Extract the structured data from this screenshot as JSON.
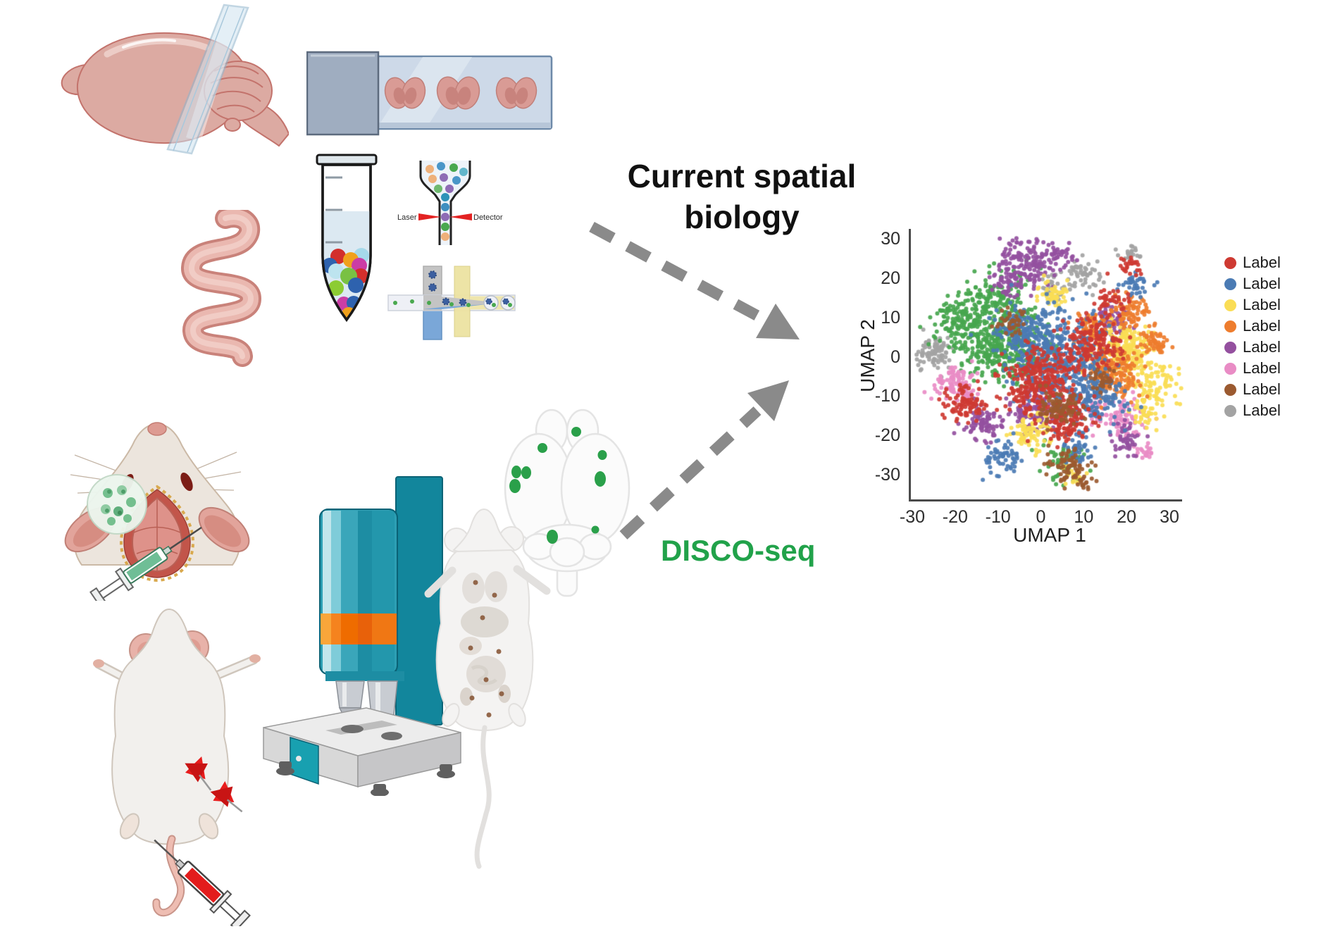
{
  "heading": {
    "line1": "Current spatial",
    "line2": "biology"
  },
  "disco_label": "DISCO-seq",
  "cytometer": {
    "laser": "Laser",
    "detector": "Detector"
  },
  "chart_data": {
    "type": "scatter",
    "title": "",
    "xlabel": "UMAP 1",
    "ylabel": "UMAP 2",
    "xlim": [
      -33,
      33
    ],
    "ylim": [
      -37,
      32
    ],
    "xticks": [
      -30,
      -20,
      -10,
      0,
      10,
      20,
      30
    ],
    "yticks": [
      30,
      20,
      10,
      0,
      -10,
      -20,
      -30
    ],
    "grid": false,
    "legend_position": "right",
    "point_radius_px": 3,
    "palette": {
      "red": "#ce3a32",
      "blue": "#4b7bb4",
      "yellow": "#fadd55",
      "orange": "#ee7d2e",
      "purple": "#94509f",
      "pink": "#e98cc5",
      "brown": "#9b5a30",
      "gray": "#a3a3a3",
      "green": "#47a64e"
    },
    "legend": [
      {
        "label": "Label",
        "color": "#ce3a32"
      },
      {
        "label": "Label",
        "color": "#4b7bb4"
      },
      {
        "label": "Label",
        "color": "#fadd55"
      },
      {
        "label": "Label",
        "color": "#ee7d2e"
      },
      {
        "label": "Label",
        "color": "#94509f"
      },
      {
        "label": "Label",
        "color": "#e98cc5"
      },
      {
        "label": "Label",
        "color": "#9b5a30"
      },
      {
        "label": "Label",
        "color": "#a3a3a3"
      }
    ],
    "clusters": [
      {
        "c": "gray",
        "x": -25,
        "y": 1,
        "sd": 2.2,
        "n": 90
      },
      {
        "c": "gray",
        "x": 10,
        "y": 21,
        "sd": 2.0,
        "n": 55
      },
      {
        "c": "gray",
        "x": 3,
        "y": 18,
        "sd": 1.3,
        "n": 25
      },
      {
        "c": "gray",
        "x": 21,
        "y": 26,
        "sd": 1.3,
        "n": 20
      },
      {
        "c": "green",
        "x": -14,
        "y": 6,
        "sd": 5.0,
        "n": 240
      },
      {
        "c": "green",
        "x": -9,
        "y": 15,
        "sd": 3.5,
        "n": 130
      },
      {
        "c": "green",
        "x": -20,
        "y": 11,
        "sd": 2.5,
        "n": 60
      },
      {
        "c": "green",
        "x": -4,
        "y": 1,
        "sd": 4.0,
        "n": 170
      },
      {
        "c": "green",
        "x": 5,
        "y": -27,
        "sd": 2.5,
        "n": 60
      },
      {
        "c": "green",
        "x": -11,
        "y": 0,
        "sd": 2.5,
        "n": 80
      },
      {
        "c": "pink",
        "x": -20,
        "y": -7,
        "sd": 2.4,
        "n": 100
      },
      {
        "c": "pink",
        "x": 19,
        "y": -16,
        "sd": 2.6,
        "n": 80
      },
      {
        "c": "pink",
        "x": 13,
        "y": -13,
        "sd": 1.3,
        "n": 30
      },
      {
        "c": "pink",
        "x": 24,
        "y": -24,
        "sd": 1.3,
        "n": 20
      },
      {
        "c": "purple",
        "x": -3,
        "y": 24,
        "sd": 3.5,
        "n": 160
      },
      {
        "c": "purple",
        "x": -8,
        "y": 19,
        "sd": 2.0,
        "n": 50
      },
      {
        "c": "purple",
        "x": -13,
        "y": -17,
        "sd": 2.5,
        "n": 85
      },
      {
        "c": "purple",
        "x": -2,
        "y": -14,
        "sd": 2.8,
        "n": 100
      },
      {
        "c": "purple",
        "x": 17,
        "y": 9,
        "sd": 2.2,
        "n": 60
      },
      {
        "c": "purple",
        "x": 20,
        "y": -21,
        "sd": 2.0,
        "n": 45
      },
      {
        "c": "purple",
        "x": 5,
        "y": 26,
        "sd": 1.5,
        "n": 25
      },
      {
        "c": "yellow",
        "x": 19,
        "y": 1,
        "sd": 3.3,
        "n": 210
      },
      {
        "c": "yellow",
        "x": -2,
        "y": -19,
        "sd": 2.4,
        "n": 85
      },
      {
        "c": "yellow",
        "x": 3,
        "y": 16,
        "sd": 1.8,
        "n": 50
      },
      {
        "c": "yellow",
        "x": 27,
        "y": -7,
        "sd": 2.6,
        "n": 80
      },
      {
        "c": "yellow",
        "x": 24,
        "y": -14,
        "sd": 1.8,
        "n": 40
      },
      {
        "c": "yellow",
        "x": 8,
        "y": -30,
        "sd": 1.5,
        "n": 20
      },
      {
        "c": "orange",
        "x": 16,
        "y": -4,
        "sd": 3.3,
        "n": 200
      },
      {
        "c": "orange",
        "x": 21,
        "y": 12,
        "sd": 2.4,
        "n": 75
      },
      {
        "c": "orange",
        "x": 26,
        "y": 4,
        "sd": 1.8,
        "n": 55
      },
      {
        "c": "orange",
        "x": 12,
        "y": 8,
        "sd": 1.8,
        "n": 50
      },
      {
        "c": "blue",
        "x": 3,
        "y": 1,
        "sd": 5.5,
        "n": 400
      },
      {
        "c": "blue",
        "x": 12,
        "y": -10,
        "sd": 3.8,
        "n": 190
      },
      {
        "c": "blue",
        "x": -9,
        "y": -26,
        "sd": 2.3,
        "n": 60
      },
      {
        "c": "blue",
        "x": 22,
        "y": 18,
        "sd": 1.8,
        "n": 40
      },
      {
        "c": "blue",
        "x": -5,
        "y": 7,
        "sd": 2.8,
        "n": 110
      },
      {
        "c": "blue",
        "x": 8,
        "y": -23,
        "sd": 2.0,
        "n": 50
      },
      {
        "c": "red",
        "x": 0,
        "y": -7,
        "sd": 4.5,
        "n": 300
      },
      {
        "c": "red",
        "x": 12,
        "y": 3,
        "sd": 3.5,
        "n": 170
      },
      {
        "c": "red",
        "x": -18,
        "y": -12,
        "sd": 2.6,
        "n": 85
      },
      {
        "c": "red",
        "x": 6,
        "y": -16,
        "sd": 2.8,
        "n": 120
      },
      {
        "c": "red",
        "x": 21,
        "y": 23,
        "sd": 1.6,
        "n": 25
      },
      {
        "c": "red",
        "x": 16,
        "y": 14,
        "sd": 2.0,
        "n": 40
      },
      {
        "c": "brown",
        "x": 7,
        "y": -28,
        "sd": 2.4,
        "n": 75
      },
      {
        "c": "brown",
        "x": 4,
        "y": -13,
        "sd": 2.3,
        "n": 90
      },
      {
        "c": "brown",
        "x": -7,
        "y": 9,
        "sd": 1.6,
        "n": 35
      },
      {
        "c": "brown",
        "x": 14,
        "y": -6,
        "sd": 1.4,
        "n": 30
      },
      {
        "c": "brown",
        "x": 10,
        "y": -32,
        "sd": 1.2,
        "n": 15
      }
    ]
  }
}
